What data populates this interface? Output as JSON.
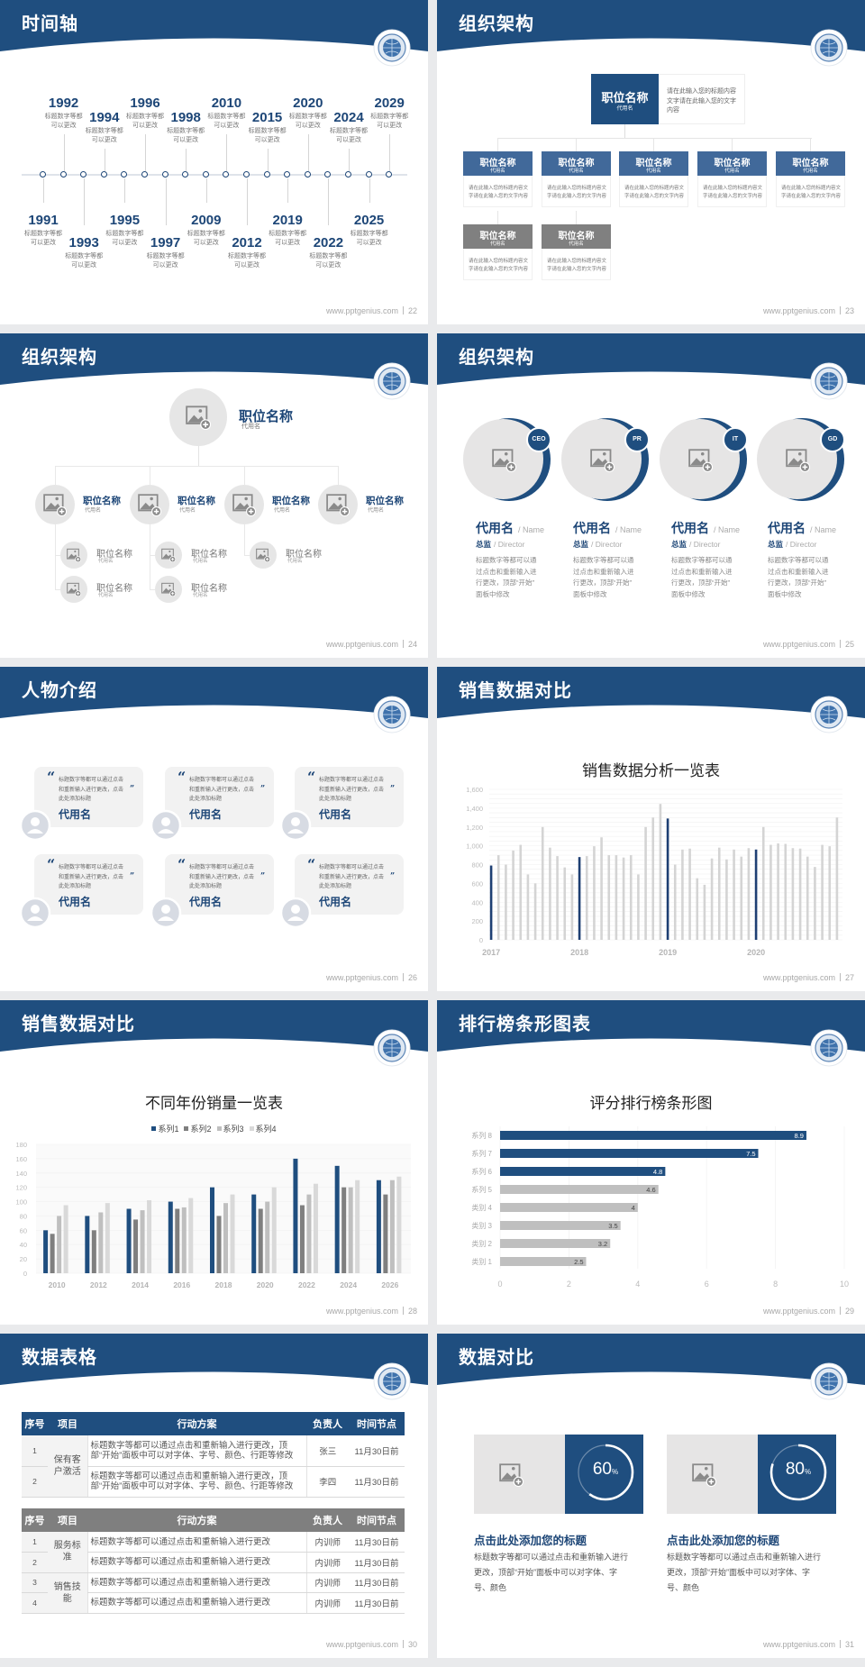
{
  "footer_site": "www.pptgenius.com",
  "colors": {
    "navy": "#1f4e7f",
    "title_navy": "#1d4677",
    "mid_blue": "#41699a",
    "gray_box": "#808080",
    "bar_gray": "#d4d4d4",
    "light_bg": "#f2f2f2"
  },
  "slides": [
    {
      "title": "时间轴",
      "page": "22",
      "timeline": [
        {
          "year": "1991",
          "desc": [
            "标题数字等都",
            "可以更改"
          ]
        },
        {
          "year": "1992",
          "desc": [
            "标题数字等都",
            "可以更改"
          ]
        },
        {
          "year": "1993",
          "desc": [
            "标题数字等都",
            "可以更改"
          ]
        },
        {
          "year": "1994",
          "desc": [
            "标题数字等都",
            "可以更改"
          ]
        },
        {
          "year": "1995",
          "desc": [
            "标题数字等都",
            "可以更改"
          ]
        },
        {
          "year": "1996",
          "desc": [
            "标题数字等都",
            "可以更改"
          ]
        },
        {
          "year": "1997",
          "desc": [
            "标题数字等都",
            "可以更改"
          ]
        },
        {
          "year": "1998",
          "desc": [
            "标题数字等都",
            "可以更改"
          ]
        },
        {
          "year": "2009",
          "desc": [
            "标题数字等都",
            "可以更改"
          ]
        },
        {
          "year": "2010",
          "desc": [
            "标题数字等都",
            "可以更改"
          ]
        },
        {
          "year": "2012",
          "desc": [
            "标题数字等都",
            "可以更改"
          ]
        },
        {
          "year": "2015",
          "desc": [
            "标题数字等都",
            "可以更改"
          ]
        },
        {
          "year": "2019",
          "desc": [
            "标题数字等都",
            "可以更改"
          ]
        },
        {
          "year": "2020",
          "desc": [
            "标题数字等都",
            "可以更改"
          ]
        },
        {
          "year": "2022",
          "desc": [
            "标题数字等都",
            "可以更改"
          ]
        },
        {
          "year": "2024",
          "desc": [
            "标题数字等都",
            "可以更改"
          ]
        },
        {
          "year": "2025",
          "desc": [
            "标题数字等都",
            "可以更改"
          ]
        },
        {
          "year": "2029",
          "desc": [
            "标题数字等都",
            "可以更改"
          ]
        }
      ]
    },
    {
      "title": "组织架构",
      "page": "23",
      "top": {
        "title": "职位名称",
        "sub": "代用名",
        "desc": [
          "请在此输入您的标题内容",
          "文字请在此输入您的文字",
          "内容"
        ]
      },
      "row1": [
        {
          "title": "职位名称",
          "sub": "代用名",
          "desc": [
            "请在此输入您的标题内容文",
            "字请在此输入您的文字内容"
          ]
        },
        {
          "title": "职位名称",
          "sub": "代用名",
          "desc": [
            "请在此输入您的标题内容文",
            "字请在此输入您的文字内容"
          ]
        },
        {
          "title": "职位名称",
          "sub": "代用名",
          "desc": [
            "请在此输入您的标题内容文",
            "字请在此输入您的文字内容"
          ]
        },
        {
          "title": "职位名称",
          "sub": "代用名",
          "desc": [
            "请在此输入您的标题内容文",
            "字请在此输入您的文字内容"
          ]
        },
        {
          "title": "职位名称",
          "sub": "代用名",
          "desc": [
            "请在此输入您的标题内容文",
            "字请在此输入您的文字内容"
          ]
        }
      ],
      "row2": [
        {
          "title": "职位名称",
          "sub": "代用名",
          "desc": [
            "请在此输入您的标题内容文",
            "字请在此输入您的文字内容"
          ]
        },
        {
          "title": "职位名称",
          "sub": "代用名",
          "desc": [
            "请在此输入您的标题内容文",
            "字请在此输入您的文字内容"
          ]
        }
      ]
    },
    {
      "title": "组织架构",
      "page": "24",
      "top": {
        "title": "职位名称",
        "sub": "代用名"
      },
      "groups": [
        {
          "title": "职位名称",
          "sub": "代用名",
          "children": [
            {
              "title": "职位名称",
              "sub": "代用名"
            },
            {
              "title": "职位名称",
              "sub": "代用名"
            }
          ]
        },
        {
          "title": "职位名称",
          "sub": "代用名",
          "children": [
            {
              "title": "职位名称",
              "sub": "代用名"
            },
            {
              "title": "职位名称",
              "sub": "代用名"
            }
          ]
        },
        {
          "title": "职位名称",
          "sub": "代用名",
          "children": [
            {
              "title": "职位名称",
              "sub": "代用名"
            }
          ]
        },
        {
          "title": "职位名称",
          "sub": "代用名",
          "children": []
        }
      ]
    },
    {
      "title": "组织架构",
      "page": "25",
      "people": [
        {
          "badge": "CEO",
          "name": "代用名",
          "name_en": "/ Name",
          "role": "总监",
          "role_en": "/  Director",
          "desc": [
            "标题数字等都可以通",
            "过点击和重新输入进",
            "行更改，顶部“开始”",
            "面板中修改"
          ]
        },
        {
          "badge": "PR",
          "name": "代用名",
          "name_en": "/ Name",
          "role": "总监",
          "role_en": "/  Director",
          "desc": [
            "标题数字等都可以通",
            "过点击和重新输入进",
            "行更改，顶部“开始”",
            "面板中修改"
          ]
        },
        {
          "badge": "IT",
          "name": "代用名",
          "name_en": "/ Name",
          "role": "总监",
          "role_en": "/  Director",
          "desc": [
            "标题数字等都可以通",
            "过点击和重新输入进",
            "行更改，顶部“开始”",
            "面板中修改"
          ]
        },
        {
          "badge": "GD",
          "name": "代用名",
          "name_en": "/ Name",
          "role": "总监",
          "role_en": "/  Director",
          "desc": [
            "标题数字等都可以通",
            "过点击和重新输入进",
            "行更改，顶部“开始”",
            "面板中修改"
          ]
        }
      ]
    },
    {
      "title": "人物介绍",
      "page": "26",
      "cards": [
        {
          "text": [
            "标题数字等都可以通过点击",
            "和重新输入进行更改，点击",
            "此处添加标题"
          ],
          "name": "代用名"
        },
        {
          "text": [
            "标题数字等都可以通过点击",
            "和重新输入进行更改，点击",
            "此处添加标题"
          ],
          "name": "代用名"
        },
        {
          "text": [
            "标题数字等都可以通过点击",
            "和重新输入进行更改，点击",
            "此处添加标题"
          ],
          "name": "代用名"
        },
        {
          "text": [
            "标题数字等都可以通过点击",
            "和重新输入进行更改，点击",
            "此处添加标题"
          ],
          "name": "代用名"
        },
        {
          "text": [
            "标题数字等都可以通过点击",
            "和重新输入进行更改，点击",
            "此处添加标题"
          ],
          "name": "代用名"
        },
        {
          "text": [
            "标题数字等都可以通过点击",
            "和重新输入进行更改，点击",
            "此处添加标题"
          ],
          "name": "代用名"
        }
      ]
    },
    {
      "title": "销售数据对比",
      "page": "27",
      "chart_data": {
        "type": "bar",
        "title": "销售数据分析一览表",
        "ylim": [
          0,
          1600
        ],
        "yticks": [
          "0",
          "200",
          "400",
          "600",
          "800",
          "1,000",
          "1,200",
          "1,400",
          "1,600"
        ],
        "x_labels": [
          {
            "index": 0,
            "label": "2017"
          },
          {
            "index": 12,
            "label": "2018"
          },
          {
            "index": 24,
            "label": "2019"
          },
          {
            "index": 36,
            "label": "2020"
          }
        ],
        "highlight_indices": [
          0,
          12,
          24,
          36
        ],
        "values": [
          790,
          900,
          800,
          950,
          1010,
          695,
          600,
          1200,
          980,
          890,
          770,
          695,
          880,
          890,
          995,
          1090,
          900,
          900,
          875,
          900,
          695,
          1200,
          1300,
          1445,
          1290,
          800,
          960,
          970,
          655,
          585,
          865,
          980,
          855,
          960,
          885,
          975,
          960,
          1200,
          1010,
          1025,
          1020,
          975,
          970,
          885,
          775,
          1010,
          995,
          1300
        ],
        "grid": true
      }
    },
    {
      "title": "销售数据对比",
      "page": "28",
      "chart_data": {
        "type": "bar",
        "title": "不同年份销量一览表",
        "categories": [
          "2010",
          "2012",
          "2014",
          "2016",
          "2018",
          "2020",
          "2022",
          "2024",
          "2026"
        ],
        "ylim": [
          0,
          180
        ],
        "yticks": [
          "0",
          "20",
          "40",
          "60",
          "80",
          "100",
          "120",
          "140",
          "160",
          "180"
        ],
        "legend": "top",
        "series": [
          {
            "name": "系列1",
            "color": "#1f4e7f",
            "values": [
              60,
              80,
              90,
              100,
              120,
              110,
              160,
              150,
              130
            ]
          },
          {
            "name": "系列2",
            "color": "#7f7f7f",
            "values": [
              55,
              60,
              75,
              90,
              80,
              90,
              95,
              120,
              110
            ]
          },
          {
            "name": "系列3",
            "color": "#bfbfbf",
            "values": [
              80,
              85,
              88,
              92,
              98,
              100,
              110,
              120,
              130
            ]
          },
          {
            "name": "系列4",
            "color": "#d9d9d9",
            "values": [
              95,
              98,
              102,
              105,
              110,
              120,
              125,
              130,
              135
            ]
          }
        ]
      }
    },
    {
      "title": "排行榜条形图表",
      "page": "29",
      "chart_data": {
        "type": "bar",
        "orientation": "horizontal",
        "title": "评分排行榜条形图",
        "categories": [
          "系列 8",
          "系列 7",
          "系列 6",
          "系列 5",
          "类别 4",
          "类别 3",
          "类别 2",
          "类别 1"
        ],
        "values": [
          8.9,
          7.5,
          4.8,
          4.6,
          4,
          3.5,
          3.2,
          2.5
        ],
        "value_labels": [
          "8.9",
          "7.5",
          "4.8",
          "4.6",
          "4",
          "3.5",
          "3.2",
          "2.5"
        ],
        "colors": [
          "#1f4e7f",
          "#1f4e7f",
          "#1f4e7f",
          "#bfbfbf",
          "#bfbfbf",
          "#bfbfbf",
          "#bfbfbf",
          "#bfbfbf"
        ],
        "xlim": [
          0,
          10
        ],
        "xticks": [
          "0",
          "2",
          "4",
          "6",
          "8",
          "10"
        ]
      }
    },
    {
      "title": "数据表格",
      "page": "30",
      "tables": [
        {
          "style": "blue",
          "headers": [
            "序号",
            "项目",
            "行动方案",
            "负责人",
            "时间节点"
          ],
          "groups": [
            {
              "item": "保有客户激活",
              "rows": [
                {
                  "no": "1",
                  "plan": "标题数字等都可以通过点击和重新输入进行更改，顶部“开始”面板中可以对字体、字号、颜色、行距等修改",
                  "owner": "张三",
                  "time": "11月30日前"
                },
                {
                  "no": "2",
                  "plan": "标题数字等都可以通过点击和重新输入进行更改，顶部“开始”面板中可以对字体、字号、颜色、行距等修改",
                  "owner": "李四",
                  "time": "11月30日前"
                }
              ]
            }
          ]
        },
        {
          "style": "gray",
          "headers": [
            "序号",
            "项目",
            "行动方案",
            "负责人",
            "时间节点"
          ],
          "groups": [
            {
              "item": "服务标准",
              "rows": [
                {
                  "no": "1",
                  "plan": "标题数字等都可以通过点击和重新输入进行更改",
                  "owner": "内训师",
                  "time": "11月30日前"
                },
                {
                  "no": "2",
                  "plan": "标题数字等都可以通过点击和重新输入进行更改",
                  "owner": "内训师",
                  "time": "11月30日前"
                }
              ]
            },
            {
              "item": "销售技能",
              "rows": [
                {
                  "no": "3",
                  "plan": "标题数字等都可以通过点击和重新输入进行更改",
                  "owner": "内训师",
                  "time": "11月30日前"
                },
                {
                  "no": "4",
                  "plan": "标题数字等都可以通过点击和重新输入进行更改",
                  "owner": "内训师",
                  "time": "11月30日前"
                }
              ]
            }
          ]
        }
      ]
    },
    {
      "title": "数据对比",
      "page": "31",
      "cards": [
        {
          "percent": 60,
          "value": "60",
          "unit": "%",
          "heading": "点击此处添加您的标题",
          "desc": [
            "标题数字等都可以通过点击和重新输入进行",
            "更改，顶部“开始”面板中可以对字体、字",
            "号、颜色"
          ]
        },
        {
          "percent": 80,
          "value": "80",
          "unit": "%",
          "heading": "点击此处添加您的标题",
          "desc": [
            "标题数字等都可以通过点击和重新输入进行",
            "更改，顶部“开始”面板中可以对字体、字",
            "号、颜色"
          ]
        }
      ]
    }
  ]
}
